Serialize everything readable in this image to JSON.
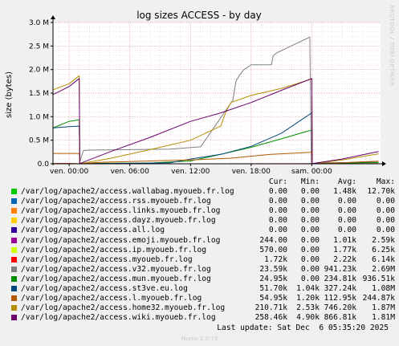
{
  "chart_data": {
    "type": "line",
    "title": "log sizes ACCESS - by day",
    "ylabel": "size (bytes)",
    "y_ticks": [
      {
        "value": 0,
        "label": "0.0"
      },
      {
        "value": 500000,
        "label": "0.5 M"
      },
      {
        "value": 1000000,
        "label": "1.0 M"
      },
      {
        "value": 1500000,
        "label": "1.5 M"
      },
      {
        "value": 2000000,
        "label": "2.0 M"
      },
      {
        "value": 2500000,
        "label": "2.5 M"
      },
      {
        "value": 3000000,
        "label": "3.0 M"
      }
    ],
    "ylim": [
      0,
      3000000
    ],
    "xlim": [
      -1.6,
      30.8
    ],
    "x_unit": "hours relative to ven. 00:00",
    "x_ticks": [
      {
        "value": 0,
        "label": "ven. 00:00"
      },
      {
        "value": 6,
        "label": "ven. 06:00"
      },
      {
        "value": 12,
        "label": "ven. 12:00"
      },
      {
        "value": 18,
        "label": "ven. 18:00"
      },
      {
        "value": 24,
        "label": "sam. 00:00"
      }
    ],
    "grid": true,
    "legend_placement": "bottom",
    "series": [
      {
        "name": "/var/log/apache2/access.wallabag.myoueb.fr.log",
        "color": "#00cc00",
        "cur": "0.00",
        "min": "0.00",
        "avg": "1.48k",
        "max": "12.70k",
        "points": [
          [
            -1.6,
            0
          ],
          [
            30.6,
            0
          ]
        ]
      },
      {
        "name": "/var/log/apache2/access.rss.myoueb.fr.log",
        "color": "#0066b3",
        "cur": "0.00",
        "min": "0.00",
        "avg": "0.00",
        "max": "0.00",
        "points": [
          [
            -1.6,
            0
          ],
          [
            30.6,
            0
          ]
        ]
      },
      {
        "name": "/var/log/apache2/access.links.myoueb.fr.log",
        "color": "#ff8000",
        "cur": "0.00",
        "min": "0.00",
        "avg": "0.00",
        "max": "0.00",
        "points": [
          [
            -1.6,
            0
          ],
          [
            30.6,
            0
          ]
        ]
      },
      {
        "name": "/var/log/apache2/access.dayz.myoueb.fr.log",
        "color": "#ffcc00",
        "cur": "0.00",
        "min": "0.00",
        "avg": "0.00",
        "max": "0.00",
        "points": [
          [
            -1.6,
            0
          ],
          [
            30.6,
            0
          ]
        ]
      },
      {
        "name": "/var/log/apache2/access.all.log",
        "color": "#330099",
        "cur": "0.00",
        "min": "0.00",
        "avg": "0.00",
        "max": "0.00",
        "points": [
          [
            -1.6,
            0
          ],
          [
            30.6,
            0
          ]
        ]
      },
      {
        "name": "/var/log/apache2/access.emoji.myoueb.fr.log",
        "color": "#990099",
        "cur": "244.00",
        "min": "0.00",
        "avg": "1.01k",
        "max": "2.59k",
        "points": [
          [
            -1.6,
            1000
          ],
          [
            0,
            2500
          ],
          [
            1,
            0
          ],
          [
            30.6,
            244
          ]
        ]
      },
      {
        "name": "/var/log/apache2/access.ip.myoueb.fr.log",
        "color": "#ccff00",
        "cur": "570.00",
        "min": "0.00",
        "avg": "1.77k",
        "max": "6.25k",
        "points": [
          [
            -1.6,
            3000
          ],
          [
            0,
            6000
          ],
          [
            1,
            0
          ],
          [
            30.6,
            570
          ]
        ]
      },
      {
        "name": "/var/log/apache2/access.myoueb.fr.log",
        "color": "#ff0000",
        "cur": "1.72k",
        "min": "0.00",
        "avg": "2.22k",
        "max": "6.14k",
        "points": [
          [
            -1.6,
            4000
          ],
          [
            0,
            6000
          ],
          [
            1,
            0
          ],
          [
            30.6,
            1720
          ]
        ]
      },
      {
        "name": "/var/log/apache2/access.v32.myoueb.fr.log",
        "color": "#808080",
        "cur": "23.59k",
        "min": "0.00",
        "avg": "941.23k",
        "max": "2.69M",
        "points": [
          [
            1,
            0
          ],
          [
            1.4,
            280000
          ],
          [
            2,
            290000
          ],
          [
            6,
            300000
          ],
          [
            10,
            310000
          ],
          [
            13,
            360000
          ],
          [
            16.2,
            1350000
          ],
          [
            16.5,
            1750000
          ],
          [
            16.9,
            1900000
          ],
          [
            17.3,
            2000000
          ],
          [
            18,
            2100000
          ],
          [
            20,
            2100000
          ],
          [
            20.2,
            2300000
          ],
          [
            20.5,
            2350000
          ],
          [
            23.8,
            2690000
          ],
          [
            23.95,
            0
          ],
          [
            25,
            23590
          ],
          [
            30.6,
            23590
          ]
        ]
      },
      {
        "name": "/var/log/apache2/access.mun.myoueb.fr.log",
        "color": "#008f00",
        "cur": "24.95k",
        "min": "0.00",
        "avg": "234.81k",
        "max": "936.51k",
        "points": [
          [
            -1.6,
            760000
          ],
          [
            0,
            900000
          ],
          [
            1,
            936510
          ],
          [
            1.05,
            0
          ],
          [
            2,
            10000
          ],
          [
            8,
            15000
          ],
          [
            12,
            60000
          ],
          [
            15,
            200000
          ],
          [
            18,
            350000
          ],
          [
            21,
            530000
          ],
          [
            24,
            720000
          ],
          [
            24.05,
            0
          ],
          [
            27,
            15000
          ],
          [
            30.6,
            24950
          ]
        ]
      },
      {
        "name": "/var/log/apache2/access.st3ve.eu.log",
        "color": "#00487d",
        "cur": "51.70k",
        "min": "1.04k",
        "avg": "327.24k",
        "max": "1.08M",
        "points": [
          [
            -1.6,
            760000
          ],
          [
            0,
            790000
          ],
          [
            1,
            800000
          ],
          [
            1.05,
            1040
          ],
          [
            6,
            10000
          ],
          [
            10,
            20000
          ],
          [
            12,
            100000
          ],
          [
            15,
            200000
          ],
          [
            18,
            370000
          ],
          [
            21,
            650000
          ],
          [
            24,
            1080000
          ],
          [
            24.05,
            1040
          ],
          [
            27,
            20000
          ],
          [
            30.6,
            51700
          ]
        ]
      },
      {
        "name": "/var/log/apache2/access.l.myoueb.fr.log",
        "color": "#b35a00",
        "cur": "54.95k",
        "min": "1.20k",
        "avg": "112.95k",
        "max": "244.87k",
        "points": [
          [
            -1.6,
            220000
          ],
          [
            1,
            220000
          ],
          [
            1.05,
            1200
          ],
          [
            3,
            30000
          ],
          [
            8,
            60000
          ],
          [
            12,
            80000
          ],
          [
            16,
            120000
          ],
          [
            20,
            200000
          ],
          [
            24,
            244870
          ],
          [
            24.05,
            1200
          ],
          [
            27,
            20000
          ],
          [
            30.6,
            54950
          ]
        ]
      },
      {
        "name": "/var/log/apache2/access.home32.myoueb.fr.log",
        "color": "#b38f00",
        "cur": "210.71k",
        "min": "2.53k",
        "avg": "746.20k",
        "max": "1.87M",
        "points": [
          [
            -1.6,
            1570000
          ],
          [
            0,
            1700000
          ],
          [
            1,
            1870000
          ],
          [
            1.05,
            2530
          ],
          [
            4,
            110000
          ],
          [
            8,
            300000
          ],
          [
            12,
            500000
          ],
          [
            14,
            700000
          ],
          [
            15,
            800000
          ],
          [
            15.5,
            1100000
          ],
          [
            16,
            1300000
          ],
          [
            18,
            1450000
          ],
          [
            21,
            1600000
          ],
          [
            24,
            1800000
          ],
          [
            24.05,
            2530
          ],
          [
            27,
            80000
          ],
          [
            30.6,
            210710
          ]
        ]
      },
      {
        "name": "/var/log/apache2/access.wiki.myoueb.fr.log",
        "color": "#6b006b",
        "cur": "258.46k",
        "min": "4.90k",
        "avg": "866.81k",
        "max": "1.81M",
        "points": [
          [
            -1.6,
            1470000
          ],
          [
            0,
            1640000
          ],
          [
            1,
            1810000
          ],
          [
            1.05,
            4900
          ],
          [
            4,
            250000
          ],
          [
            8,
            560000
          ],
          [
            12,
            900000
          ],
          [
            15,
            1080000
          ],
          [
            18,
            1300000
          ],
          [
            21,
            1560000
          ],
          [
            24,
            1810000
          ],
          [
            24.05,
            4900
          ],
          [
            27,
            100000
          ],
          [
            30.6,
            258460
          ]
        ]
      }
    ],
    "legend_header": {
      "cur": "Cur:",
      "min": "Min:",
      "avg": "Avg:",
      "max": "Max:"
    }
  },
  "footer": {
    "last_update": "Last update: Sat Dec  6 05:35:20 2025",
    "version": "Munin 2.0.73",
    "watermark": "RRDTOOL / TOBI OETIKER"
  },
  "colors": {
    "background": "#f0f0f0",
    "plot_background": "#ffffff",
    "grid_major": "#e0a0a0",
    "grid_minor": "#e8d0d0"
  }
}
